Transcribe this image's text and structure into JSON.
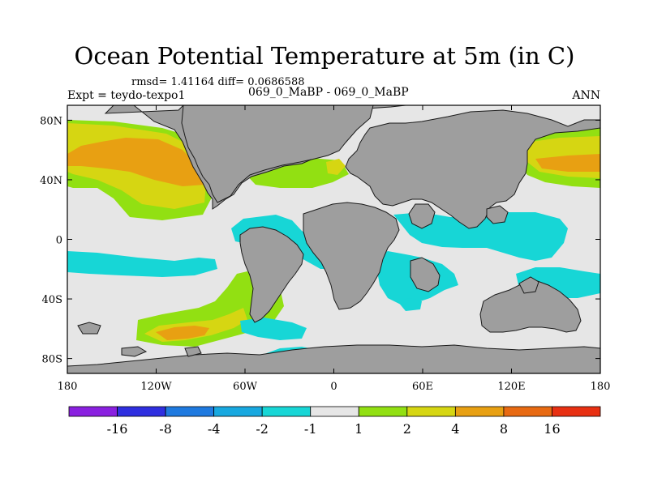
{
  "chart_data": {
    "type": "heatmap",
    "title": "Ocean Potential Temperature at 5m (in C)",
    "stats_text": "rmsd= 1.41164 diff= 0.0686588",
    "left_label": "Expt = teydo-texpo1",
    "center_label": "069_0_MaBP - 069_0_MaBP",
    "right_label": "ANN",
    "x_ticks": [
      "180",
      "120W",
      "60W",
      "0",
      "60E",
      "120E",
      "180"
    ],
    "y_ticks": [
      "80N",
      "40N",
      "0",
      "40S",
      "80S"
    ],
    "xlim": [
      -180,
      180
    ],
    "ylim": [
      -90,
      90
    ],
    "colorbar": {
      "colors": [
        "#8a20e0",
        "#2f2fe0",
        "#1f7ae0",
        "#17a8e0",
        "#17d6d6",
        "#e6e6e6",
        "#92e012",
        "#d6d612",
        "#e8a012",
        "#e86a12",
        "#e83012"
      ],
      "labels": [
        "-16",
        "-8",
        "-4",
        "-2",
        "-1",
        "1",
        "2",
        "4",
        "8",
        "16"
      ]
    },
    "land_color": "#9e9e9e",
    "background_color": "#e6e6e6"
  }
}
